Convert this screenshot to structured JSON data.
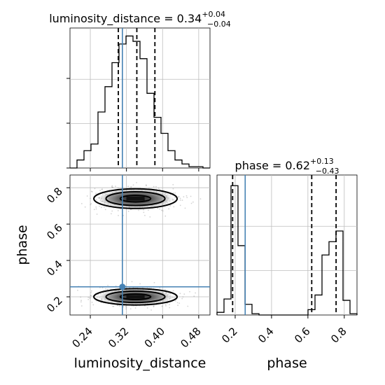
{
  "chart_data": [
    {
      "type": "histogram",
      "panel": "luminosity_distance marginal",
      "title_lhs": "luminosity_distance = 0.34",
      "title_sup": "+0.04",
      "title_sub": "−0.04",
      "xlim": [
        0.195,
        0.505
      ],
      "bins": [
        0.195,
        0.2105,
        0.226,
        0.2415,
        0.257,
        0.2725,
        0.288,
        0.3035,
        0.319,
        0.3345,
        0.35,
        0.3655,
        0.381,
        0.3965,
        0.412,
        0.4275,
        0.443,
        0.4585,
        0.474,
        0.4895,
        0.505
      ],
      "counts": [
        0,
        0.06,
        0.13,
        0.18,
        0.42,
        0.61,
        0.79,
        0.93,
        0.99,
        0.95,
        0.82,
        0.56,
        0.38,
        0.26,
        0.13,
        0.06,
        0.03,
        0.01,
        0.01,
        0
      ],
      "quantiles": [
        0.302,
        0.343,
        0.383
      ],
      "truth": 0.311
    },
    {
      "type": "scatter",
      "panel": "phase vs luminosity_distance",
      "xlabel": "luminosity_distance",
      "ylabel": "phase",
      "xlim": [
        0.195,
        0.505
      ],
      "ylim": [
        0.1,
        0.87
      ],
      "xticks": [
        "0.24",
        "0.32",
        "0.40",
        "0.48"
      ],
      "yticks": [
        "0.2",
        "0.4",
        "0.6",
        "0.8"
      ],
      "clusters": [
        {
          "x_center": 0.34,
          "y_center": 0.74,
          "x_spread": 0.045,
          "y_spread": 0.03
        },
        {
          "x_center": 0.34,
          "y_center": 0.2,
          "x_spread": 0.045,
          "y_spread": 0.025
        }
      ],
      "truth": {
        "x": 0.311,
        "y": 0.255
      }
    },
    {
      "type": "histogram",
      "panel": "phase marginal",
      "title_lhs": "phase = 0.62",
      "title_sup": "+0.13",
      "title_sub": "−0.43",
      "xlabel": "phase",
      "xlim": [
        0.1,
        0.87
      ],
      "xticks": [
        "0.2",
        "0.4",
        "0.6",
        "0.8"
      ],
      "bins": [
        0.1,
        0.1385,
        0.177,
        0.2155,
        0.254,
        0.2925,
        0.331,
        0.3695,
        0.408,
        0.4465,
        0.485,
        0.5235,
        0.562,
        0.6005,
        0.639,
        0.6775,
        0.716,
        0.7545,
        0.793,
        0.8315,
        0.87
      ],
      "counts": [
        0.02,
        0.12,
        0.97,
        0.52,
        0.08,
        0.01,
        0,
        0,
        0,
        0,
        0,
        0,
        0,
        0.04,
        0.15,
        0.45,
        0.55,
        0.63,
        0.11,
        0.01
      ],
      "quantiles": [
        0.186,
        0.621,
        0.755
      ],
      "truth": 0.255
    }
  ],
  "colors": {
    "truth": "#4682b4",
    "hist": "#000000",
    "grid": "#bdbdbd",
    "points": "#808080"
  }
}
